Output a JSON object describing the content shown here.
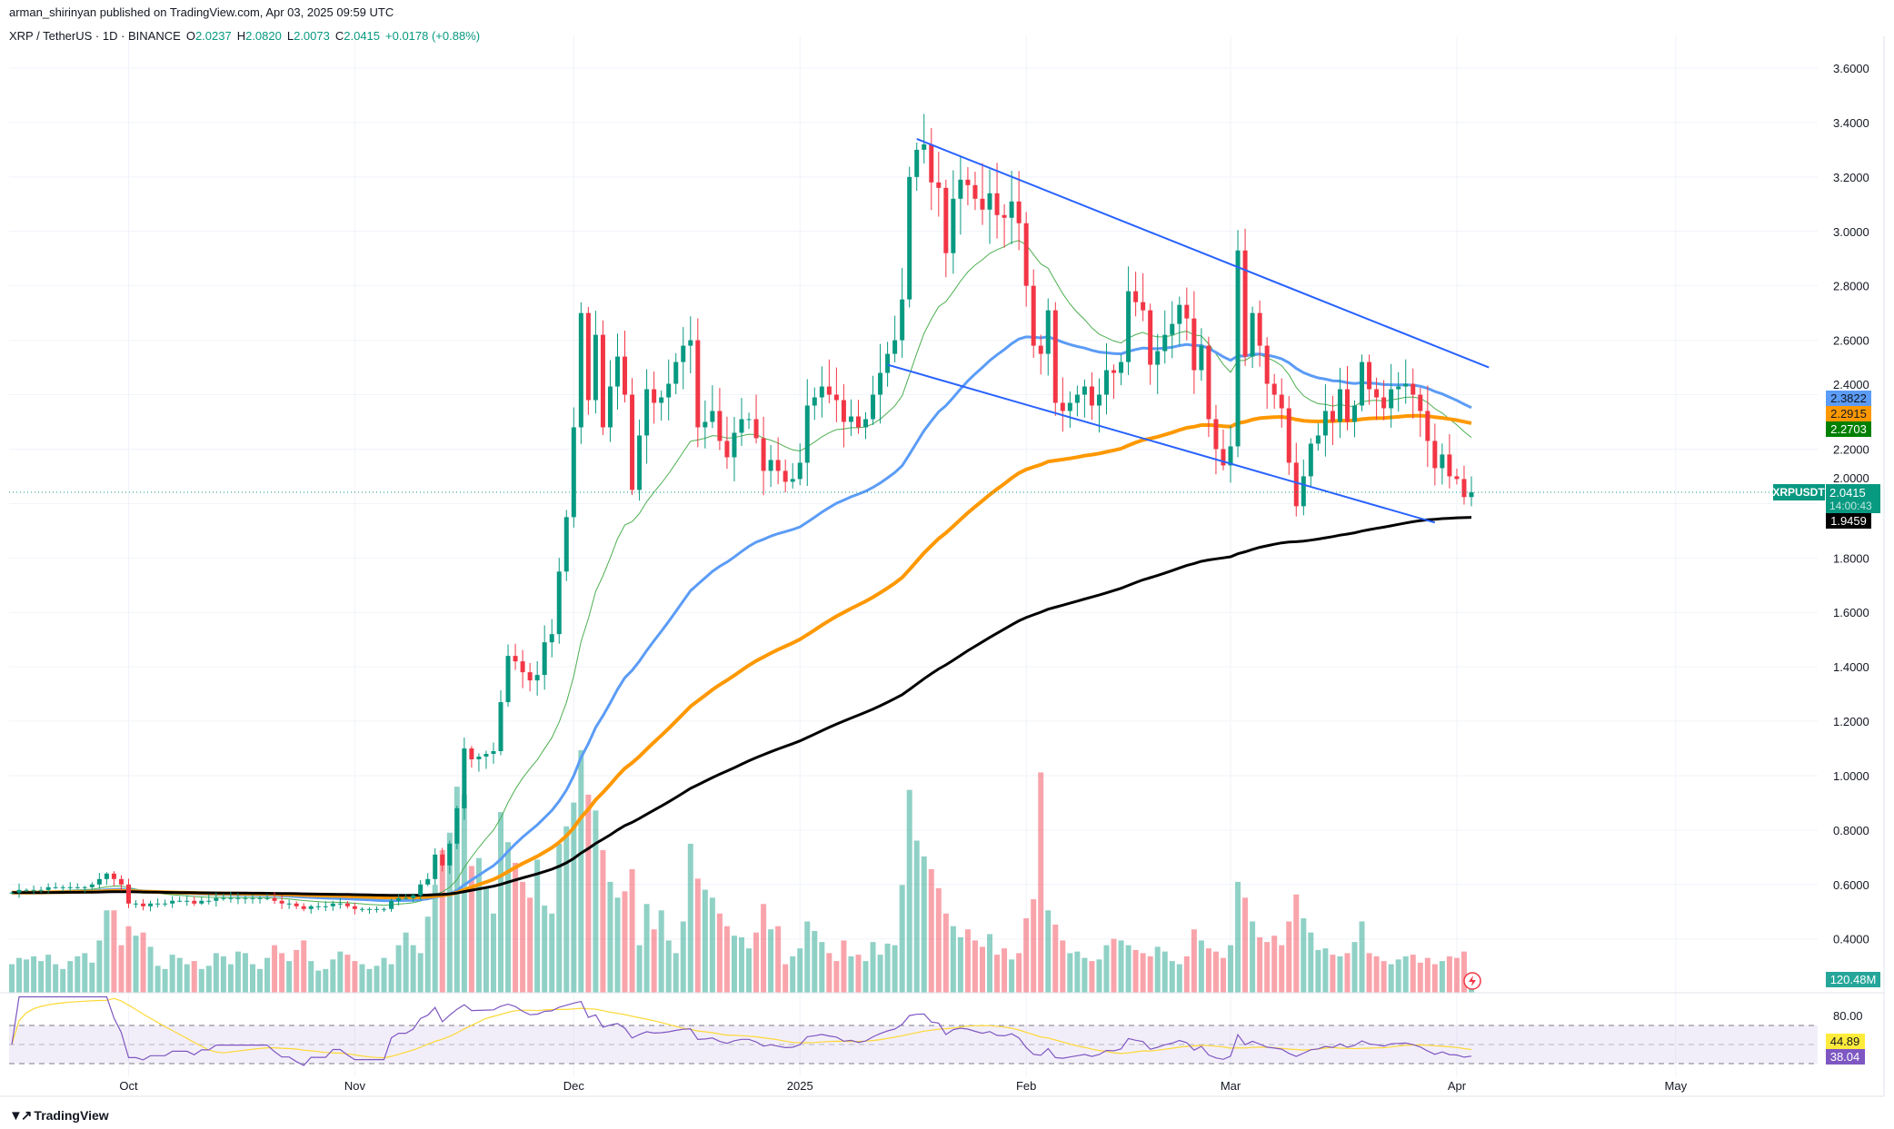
{
  "header": {
    "published": "arman_shirinyan published on TradingView.com, Apr 03, 2025 09:59 UTC",
    "symbol": "XRP / TetherUS · 1D · BINANCE",
    "o_label": "O",
    "o": "2.0237",
    "h_label": "H",
    "h": "2.0820",
    "l_label": "L",
    "l": "2.0073",
    "c_label": "C",
    "c": "2.0415",
    "change": "+0.0178 (+0.88%)"
  },
  "labels": {
    "ma50": "2.3822",
    "ma100": "2.2915",
    "ma20": "2.2703",
    "symbol_tag": "XRPUSDT",
    "last_price": "2.0415",
    "countdown": "14:00:43",
    "ma200": "1.9459",
    "volume": "120.48M",
    "rsi_level": "80.00",
    "rsi_ma": "44.89",
    "rsi": "38.04"
  },
  "branding": {
    "logo_text": "TradingView"
  },
  "colors": {
    "up": "#089981",
    "down": "#f23645",
    "ma20": "#4caf50",
    "ma50": "#5b9cf6",
    "ma100": "#ff9800",
    "ma200": "#000000",
    "trendline": "#2962ff",
    "rsi": "#7e57c2",
    "rsi_ma": "#fdd835"
  },
  "chart_data": {
    "type": "candlestick",
    "title": "XRP / TetherUS · 1D · BINANCE",
    "start_date": "2024-09-15",
    "ylim": [
      0.3,
      3.7
    ],
    "price_ticks": [
      3.6,
      3.4,
      3.2,
      3.0,
      2.8,
      2.6,
      2.4,
      2.2,
      2.0,
      1.8,
      1.6,
      1.4,
      1.2,
      1.0,
      0.8,
      0.6,
      0.4
    ],
    "time_labels": [
      {
        "label": "Oct",
        "index": 16
      },
      {
        "label": "Nov",
        "index": 47
      },
      {
        "label": "Dec",
        "index": 77
      },
      {
        "label": "2025",
        "index": 108
      },
      {
        "label": "Feb",
        "index": 139
      },
      {
        "label": "Mar",
        "index": 167
      },
      {
        "label": "Apr",
        "index": 198
      },
      {
        "label": "May",
        "index": 228
      }
    ],
    "close": [
      0.57,
      0.58,
      0.58,
      0.58,
      0.58,
      0.59,
      0.59,
      0.59,
      0.59,
      0.59,
      0.59,
      0.6,
      0.62,
      0.64,
      0.62,
      0.6,
      0.53,
      0.53,
      0.52,
      0.53,
      0.53,
      0.53,
      0.54,
      0.54,
      0.54,
      0.53,
      0.54,
      0.54,
      0.55,
      0.55,
      0.55,
      0.55,
      0.55,
      0.55,
      0.55,
      0.55,
      0.54,
      0.53,
      0.53,
      0.52,
      0.51,
      0.52,
      0.52,
      0.52,
      0.53,
      0.53,
      0.52,
      0.51,
      0.51,
      0.51,
      0.51,
      0.51,
      0.54,
      0.55,
      0.55,
      0.56,
      0.6,
      0.62,
      0.71,
      0.67,
      0.75,
      0.88,
      1.1,
      1.06,
      1.07,
      1.08,
      1.09,
      1.27,
      1.44,
      1.42,
      1.38,
      1.35,
      1.37,
      1.49,
      1.52,
      1.75,
      1.95,
      2.28,
      2.7,
      2.38,
      2.62,
      2.28,
      2.43,
      2.54,
      2.4,
      2.05,
      2.25,
      2.42,
      2.37,
      2.39,
      2.44,
      2.52,
      2.58,
      2.6,
      2.28,
      2.3,
      2.34,
      2.23,
      2.17,
      2.26,
      2.31,
      2.31,
      2.24,
      2.12,
      2.16,
      2.12,
      2.08,
      2.09,
      2.15,
      2.36,
      2.39,
      2.43,
      2.4,
      2.38,
      2.3,
      2.32,
      2.28,
      2.31,
      2.4,
      2.48,
      2.55,
      2.6,
      2.75,
      3.2,
      3.3,
      3.32,
      3.18,
      3.16,
      2.92,
      3.12,
      3.19,
      3.17,
      3.12,
      3.08,
      3.14,
      3.06,
      3.05,
      3.11,
      3.03,
      2.8,
      2.58,
      2.55,
      2.71,
      2.37,
      2.34,
      2.37,
      2.4,
      2.43,
      2.36,
      2.4,
      2.49,
      2.48,
      2.52,
      2.78,
      2.74,
      2.71,
      2.51,
      2.56,
      2.62,
      2.66,
      2.73,
      2.68,
      2.49,
      2.58,
      2.31,
      2.2,
      2.14,
      2.21,
      2.93,
      2.54,
      2.7,
      2.58,
      2.44,
      2.4,
      2.35,
      2.15,
      1.99,
      2.1,
      2.22,
      2.25,
      2.34,
      2.3,
      2.42,
      2.3,
      2.36,
      2.52,
      2.42,
      2.39,
      2.35,
      2.42,
      2.43,
      2.44,
      2.4,
      2.34,
      2.23,
      2.13,
      2.18,
      2.1,
      2.09,
      2.0237,
      2.0415
    ],
    "volume_millions": [
      180,
      220,
      210,
      230,
      200,
      240,
      180,
      150,
      200,
      230,
      250,
      190,
      330,
      520,
      520,
      300,
      420,
      360,
      380,
      290,
      170,
      150,
      240,
      220,
      180,
      200,
      150,
      170,
      250,
      230,
      180,
      260,
      250,
      180,
      150,
      220,
      300,
      250,
      200,
      270,
      330,
      200,
      140,
      150,
      210,
      260,
      240,
      200,
      180,
      150,
      170,
      220,
      180,
      300,
      380,
      300,
      250,
      480,
      680,
      900,
      1010,
      1300,
      1250,
      800,
      850,
      660,
      500,
      1140,
      950,
      820,
      700,
      600,
      840,
      550,
      500,
      940,
      1050,
      1200,
      1530,
      1250,
      1150,
      900,
      700,
      600,
      640,
      780,
      300,
      560,
      400,
      520,
      330,
      250,
      450,
      940,
      720,
      650,
      600,
      500,
      420,
      360,
      350,
      280,
      380,
      560,
      400,
      420,
      180,
      230,
      280,
      450,
      390,
      320,
      250,
      200,
      330,
      230,
      240,
      200,
      320,
      240,
      310,
      300,
      680,
      1280,
      960,
      860,
      780,
      660,
      500,
      420,
      350,
      400,
      330,
      290,
      370,
      240,
      280,
      210,
      250,
      470,
      590,
      1390,
      520,
      430,
      330,
      250,
      260,
      220,
      200,
      210,
      300,
      340,
      330,
      300,
      270,
      250,
      230,
      290,
      260,
      200,
      180,
      230,
      400,
      330,
      280,
      260,
      220,
      300,
      700,
      600,
      450,
      350,
      320,
      360,
      300,
      450,
      620,
      470,
      380,
      270,
      280,
      240,
      230,
      250,
      320,
      450,
      250,
      230,
      200,
      180,
      210,
      230,
      240,
      190,
      220,
      180,
      200,
      230,
      220,
      260,
      120
    ],
    "moving_averages": [
      {
        "name": "MA20",
        "period": 20,
        "color_key": "ma20"
      },
      {
        "name": "MA50",
        "period": 50,
        "color_key": "ma50"
      },
      {
        "name": "MA100",
        "period": 100,
        "color_key": "ma100"
      },
      {
        "name": "MA200",
        "period": 200,
        "color_key": "ma200"
      }
    ],
    "trendlines": [
      {
        "name": "upper",
        "from": {
          "index": 124,
          "price": 3.34
        },
        "to": {
          "index": 202.4,
          "price": 2.5
        }
      },
      {
        "name": "lower",
        "from": {
          "index": 120,
          "price": 2.51
        },
        "to": {
          "index": 195,
          "price": 1.93
        }
      }
    ],
    "rsi": {
      "period": 14,
      "ma_period": 14,
      "upper": 70,
      "middle": 50,
      "lower": 30
    }
  }
}
